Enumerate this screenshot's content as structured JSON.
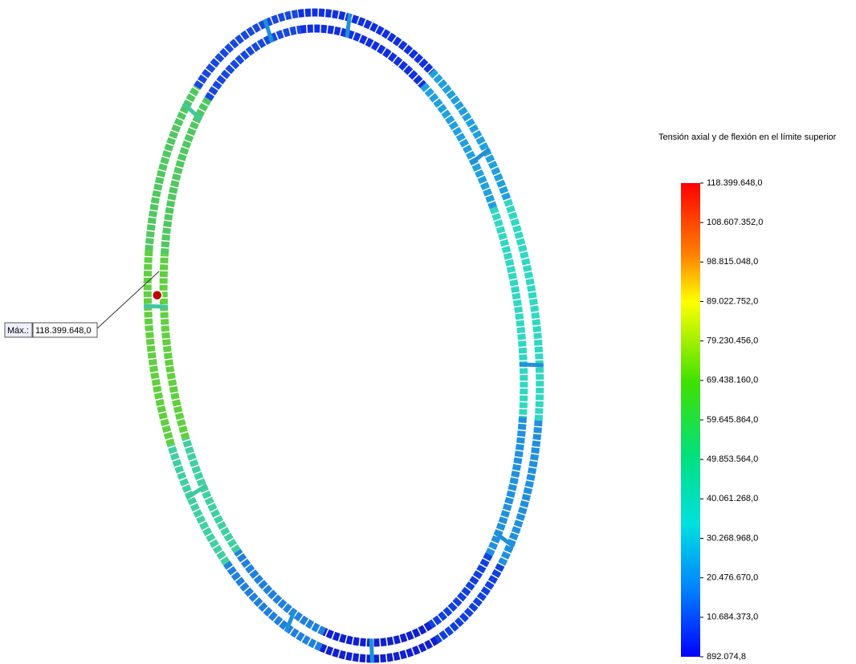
{
  "legend": {
    "title": "Tensión axial y de flexión en el límite superior",
    "labels": [
      "118.399.648,0",
      "108.607.352,0",
      "98.815.048,0",
      "89.022.752,0",
      "79.230.456,0",
      "69.438.160,0",
      "59.645.864,0",
      "49.853.564,0",
      "40.061.268,0",
      "30.268.968,0",
      "20.476.670,0",
      "10.684.373,0",
      "892.074,8"
    ]
  },
  "annotation": {
    "label": "Máx.:",
    "value": "118.399.648,0"
  }
}
